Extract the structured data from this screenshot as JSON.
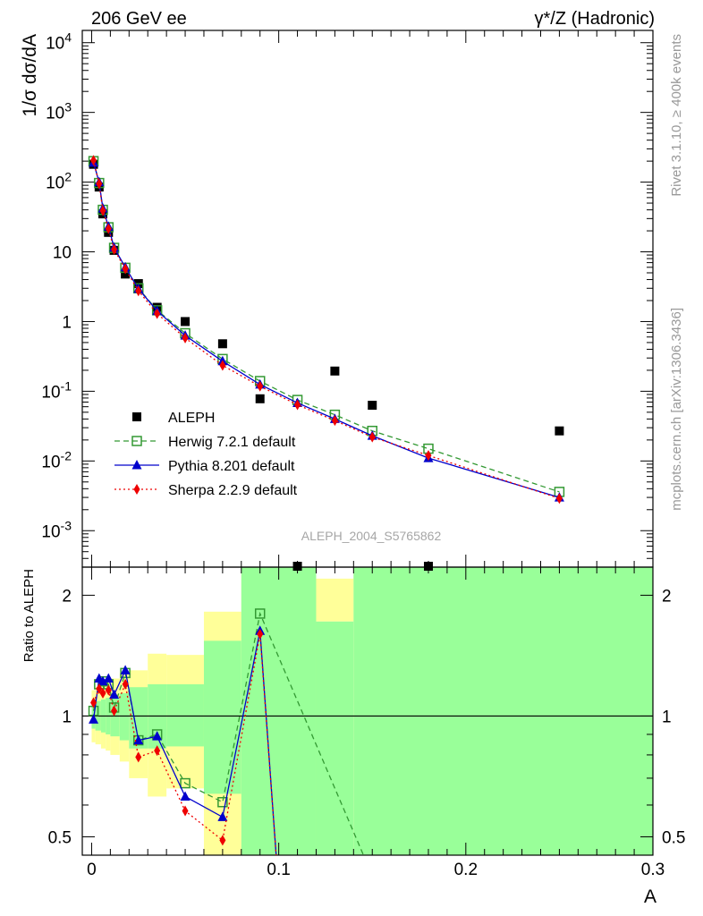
{
  "header": {
    "left": "206 GeV ee",
    "right": "γ*/Z (Hadronic)"
  },
  "side_text": {
    "rivet": "Rivet 3.1.10, ≥ 400k events",
    "mcplots": "mcplots.cern.ch [arXiv:1306.3436]"
  },
  "watermark": "ALEPH_2004_S5765862",
  "chart_data": [
    {
      "type": "scatter",
      "panel": "main",
      "ylabel": "1/σ  dσ/dA",
      "yscale": "log",
      "ylim": [
        0.0003,
        15000
      ],
      "xlim": [
        -0.005,
        0.3
      ],
      "ytick_labels": [
        "10^-3",
        "10^-2",
        "10^-1",
        "1",
        "10",
        "10^2",
        "10^3",
        "10^4"
      ],
      "legend": {
        "placement": "bottom-left",
        "entries": [
          "ALEPH",
          "Herwig 7.2.1 default",
          "Pythia 8.201 default",
          "Sherpa 2.2.9 default"
        ]
      },
      "series": [
        {
          "name": "ALEPH",
          "color": "#000000",
          "marker": "square",
          "x": [
            0.001,
            0.004,
            0.006,
            0.009,
            0.012,
            0.018,
            0.025,
            0.035,
            0.05,
            0.07,
            0.09,
            0.11,
            0.13,
            0.15,
            0.18,
            0.25
          ],
          "y": [
            180,
            85,
            35,
            19,
            10.5,
            4.8,
            3.5,
            1.6,
            1.0,
            0.48,
            0.078,
            0.00028,
            0.195,
            0.063,
            0.00028,
            0.027
          ]
        },
        {
          "name": "Herwig 7.2.1 default",
          "color": "#339933",
          "marker": "open-square",
          "line": "dashed",
          "x": [
            0.001,
            0.004,
            0.006,
            0.009,
            0.012,
            0.018,
            0.025,
            0.035,
            0.05,
            0.07,
            0.09,
            0.11,
            0.13,
            0.15,
            0.18,
            0.25
          ],
          "y": [
            200,
            97,
            40,
            22.5,
            11.4,
            5.9,
            3.0,
            1.45,
            0.68,
            0.29,
            0.14,
            0.075,
            0.046,
            0.027,
            0.015,
            0.0036
          ]
        },
        {
          "name": "Pythia 8.201 default",
          "color": "#0000cc",
          "marker": "triangle",
          "line": "solid",
          "x": [
            0.001,
            0.004,
            0.006,
            0.009,
            0.012,
            0.018,
            0.025,
            0.035,
            0.05,
            0.07,
            0.09,
            0.11,
            0.13,
            0.15,
            0.18,
            0.25
          ],
          "y": [
            190,
            100,
            42,
            23,
            11.5,
            6.0,
            2.95,
            1.42,
            0.63,
            0.27,
            0.125,
            0.068,
            0.04,
            0.023,
            0.011,
            0.003
          ]
        },
        {
          "name": "Sherpa 2.2.9 default",
          "color": "#ee0000",
          "marker": "diamond",
          "line": "dotted",
          "x": [
            0.001,
            0.004,
            0.006,
            0.009,
            0.012,
            0.018,
            0.025,
            0.035,
            0.05,
            0.07,
            0.09,
            0.11,
            0.13,
            0.15,
            0.18,
            0.25
          ],
          "y": [
            205,
            95,
            39,
            21.5,
            10.8,
            5.7,
            2.75,
            1.3,
            0.58,
            0.235,
            0.118,
            0.064,
            0.038,
            0.022,
            0.012,
            0.0029
          ]
        }
      ]
    },
    {
      "type": "line",
      "panel": "ratio",
      "ylabel": "Ratio to ALEPH",
      "xlabel": "A",
      "yscale": "log",
      "ylim": [
        0.45,
        2.35
      ],
      "xlim": [
        -0.005,
        0.3
      ],
      "xtick_labels": [
        "0",
        "0.1",
        "0.2",
        "0.3"
      ],
      "ytick_labels": [
        "0.5",
        "1",
        "2"
      ],
      "reference_line": 1,
      "bands": [
        {
          "x0": 0.0,
          "x1": 0.002,
          "yellow": [
            0.86,
            1.16
          ],
          "green": [
            0.93,
            1.07
          ]
        },
        {
          "x0": 0.002,
          "x1": 0.005,
          "yellow": [
            0.85,
            1.18
          ],
          "green": [
            0.92,
            1.09
          ]
        },
        {
          "x0": 0.005,
          "x1": 0.0075,
          "yellow": [
            0.83,
            1.2
          ],
          "green": [
            0.91,
            1.1
          ]
        },
        {
          "x0": 0.0075,
          "x1": 0.01,
          "yellow": [
            0.82,
            1.22
          ],
          "green": [
            0.9,
            1.11
          ]
        },
        {
          "x0": 0.01,
          "x1": 0.015,
          "yellow": [
            0.8,
            1.24
          ],
          "green": [
            0.89,
            1.12
          ]
        },
        {
          "x0": 0.015,
          "x1": 0.02,
          "yellow": [
            0.77,
            1.28
          ],
          "green": [
            0.87,
            1.14
          ]
        },
        {
          "x0": 0.02,
          "x1": 0.03,
          "yellow": [
            0.7,
            1.3
          ],
          "green": [
            0.83,
            1.18
          ]
        },
        {
          "x0": 0.03,
          "x1": 0.04,
          "yellow": [
            0.63,
            1.43
          ],
          "green": [
            0.83,
            1.2
          ]
        },
        {
          "x0": 0.04,
          "x1": 0.06,
          "yellow": [
            0.66,
            1.42
          ],
          "green": [
            0.84,
            1.2
          ]
        },
        {
          "x0": 0.06,
          "x1": 0.08,
          "yellow": [
            0.45,
            1.82
          ],
          "green": [
            0.64,
            1.54
          ]
        },
        {
          "x0": 0.08,
          "x1": 0.12,
          "yellow": [
            0.45,
            2.35
          ],
          "green": [
            0.45,
            2.35
          ]
        },
        {
          "x0": 0.12,
          "x1": 0.14,
          "yellow": [
            1.72,
            2.2
          ],
          "green": [
            0.45,
            1.72
          ]
        },
        {
          "x0": 0.14,
          "x1": 0.3,
          "yellow": [
            0.45,
            2.35
          ],
          "green": [
            0.45,
            2.35
          ]
        }
      ],
      "series": [
        {
          "name": "Herwig 7.2.1 default",
          "color": "#339933",
          "marker": "open-square",
          "line": "dashed",
          "x": [
            0.001,
            0.004,
            0.006,
            0.009,
            0.012,
            0.018,
            0.025,
            0.035,
            0.05,
            0.07,
            0.09,
            0.15
          ],
          "y": [
            1.03,
            1.2,
            1.22,
            1.2,
            1.05,
            1.28,
            0.87,
            0.9,
            0.68,
            0.61,
            1.8,
            0.4
          ]
        },
        {
          "name": "Pythia 8.201 default",
          "color": "#0000cc",
          "marker": "triangle",
          "line": "solid",
          "x": [
            0.001,
            0.004,
            0.006,
            0.009,
            0.012,
            0.018,
            0.025,
            0.035,
            0.05,
            0.07,
            0.09,
            0.1
          ],
          "y": [
            0.98,
            1.24,
            1.22,
            1.24,
            1.13,
            1.3,
            0.87,
            0.89,
            0.63,
            0.56,
            1.63,
            0.35
          ]
        },
        {
          "name": "Sherpa 2.2.9 default",
          "color": "#ee0000",
          "marker": "diamond",
          "line": "dotted",
          "x": [
            0.001,
            0.004,
            0.006,
            0.009,
            0.012,
            0.018,
            0.025,
            0.035,
            0.05,
            0.07,
            0.09,
            0.1
          ],
          "y": [
            1.08,
            1.17,
            1.14,
            1.16,
            1.03,
            1.2,
            0.79,
            0.82,
            0.58,
            0.49,
            1.6,
            0.35
          ]
        }
      ]
    }
  ]
}
